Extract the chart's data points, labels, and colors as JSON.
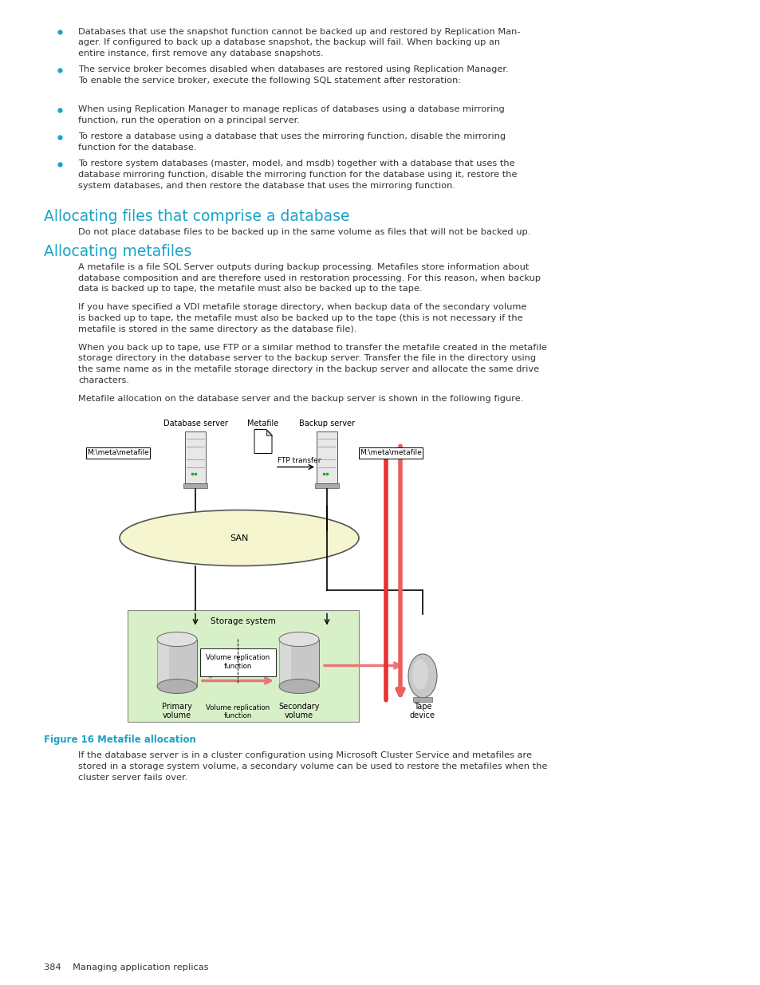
{
  "bg_color": "#ffffff",
  "cyan_color": "#1BA3C6",
  "text_color": "#333333",
  "bullet_color": "#1BA3C6",
  "bullet_points_1": [
    "Databases that use the snapshot function cannot be backed up and restored by Replication Man-\nager. If configured to back up a database snapshot, the backup will fail. When backing up an\nentire instance, first remove any database snapshots.",
    "The service broker becomes disabled when databases are restored using Replication Manager.\nTo enable the service broker, execute the following SQL statement after restoration:"
  ],
  "bullet_points_2": [
    "When using Replication Manager to manage replicas of databases using a database mirroring\nfunction, run the operation on a principal server.",
    "To restore a database using a database that uses the mirroring function, disable the mirroring\nfunction for the database.",
    "To restore system databases (master, model, and msdb) together with a database that uses the\ndatabase mirroring function, disable the mirroring function for the database using it, restore the\nsystem databases, and then restore the database that uses the mirroring function."
  ],
  "section1_title": "Allocating files that comprise a database",
  "section1_body": "Do not place database files to be backed up in the same volume as files that will not be backed up.",
  "section2_title": "Allocating metafiles",
  "section2_para1": "A metafile is a file SQL Server outputs during backup processing. Metafiles store information about\ndatabase composition and are therefore used in restoration processing. For this reason, when backup\ndata is backed up to tape, the metafile must also be backed up to the tape.",
  "section2_para2": "If you have specified a VDI metafile storage directory, when backup data of the secondary volume\nis backed up to tape, the metafile must also be backed up to the tape (this is not necessary if the\nmetafile is stored in the same directory as the database file).",
  "section2_para3": "When you back up to tape, use FTP or a similar method to transfer the metafile created in the metafile\nstorage directory in the database server to the backup server. Transfer the file in the directory using\nthe same name as in the metafile storage directory in the backup server and allocate the same drive\ncharacters.",
  "section2_para4": "Metafile allocation on the database server and the backup server is shown in the following figure.",
  "figure_caption": "Figure 16 Metafile allocation",
  "section2_para5": "If the database server is in a cluster configuration using Microsoft Cluster Service and metafiles are\nstored in a storage system volume, a secondary volume can be used to restore the metafiles when the\ncluster server fails over.",
  "footer": "384    Managing application replicas"
}
